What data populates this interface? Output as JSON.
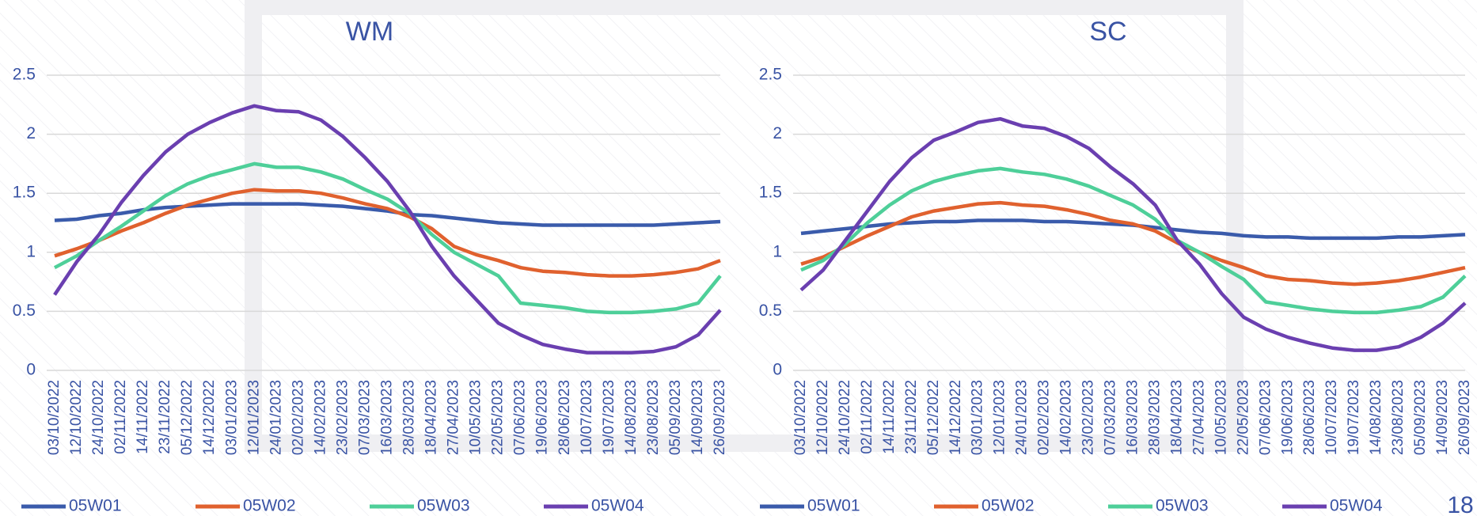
{
  "chart_data": [
    {
      "type": "line",
      "title": "WM",
      "categories": [
        "03/10/2022",
        "12/10/2022",
        "24/10/2022",
        "02/11/2022",
        "14/11/2022",
        "23/11/2022",
        "05/12/2022",
        "14/12/2022",
        "03/01/2023",
        "12/01/2023",
        "24/01/2023",
        "02/02/2023",
        "14/02/2023",
        "23/02/2023",
        "07/03/2023",
        "16/03/2023",
        "28/03/2023",
        "18/04/2023",
        "27/04/2023",
        "10/05/2023",
        "22/05/2023",
        "07/06/2023",
        "19/06/2023",
        "28/06/2023",
        "10/07/2023",
        "19/07/2023",
        "14/08/2023",
        "23/08/2023",
        "05/09/2023",
        "14/09/2023",
        "26/09/2023"
      ],
      "series": [
        {
          "name": "05W01",
          "color": "#3a5bab",
          "values": [
            1.27,
            1.28,
            1.31,
            1.33,
            1.36,
            1.38,
            1.39,
            1.4,
            1.41,
            1.41,
            1.41,
            1.41,
            1.4,
            1.39,
            1.37,
            1.35,
            1.32,
            1.31,
            1.29,
            1.27,
            1.25,
            1.24,
            1.23,
            1.23,
            1.23,
            1.23,
            1.23,
            1.23,
            1.24,
            1.25,
            1.26
          ]
        },
        {
          "name": "05W02",
          "color": "#e0612e",
          "values": [
            0.97,
            1.03,
            1.1,
            1.18,
            1.25,
            1.33,
            1.4,
            1.45,
            1.5,
            1.53,
            1.52,
            1.52,
            1.5,
            1.46,
            1.41,
            1.37,
            1.3,
            1.2,
            1.05,
            0.98,
            0.93,
            0.87,
            0.84,
            0.83,
            0.81,
            0.8,
            0.8,
            0.81,
            0.83,
            0.86,
            0.93
          ]
        },
        {
          "name": "05W03",
          "color": "#4ecf99",
          "values": [
            0.87,
            0.97,
            1.1,
            1.22,
            1.35,
            1.48,
            1.58,
            1.65,
            1.7,
            1.75,
            1.72,
            1.72,
            1.68,
            1.62,
            1.53,
            1.45,
            1.33,
            1.15,
            1.0,
            0.9,
            0.8,
            0.57,
            0.55,
            0.53,
            0.5,
            0.49,
            0.49,
            0.5,
            0.52,
            0.57,
            0.8
          ]
        },
        {
          "name": "05W04",
          "color": "#6a3fb0",
          "values": [
            0.64,
            0.92,
            1.15,
            1.42,
            1.65,
            1.85,
            2.0,
            2.1,
            2.18,
            2.24,
            2.2,
            2.19,
            2.12,
            1.98,
            1.8,
            1.6,
            1.35,
            1.05,
            0.8,
            0.6,
            0.4,
            0.3,
            0.22,
            0.18,
            0.15,
            0.15,
            0.15,
            0.16,
            0.2,
            0.3,
            0.51
          ]
        }
      ],
      "ylim": [
        0,
        2.5
      ],
      "yticks": [
        0,
        0.5,
        1,
        1.5,
        2,
        2.5
      ],
      "grid": true,
      "legend": "bottom"
    },
    {
      "type": "line",
      "title": "SC",
      "categories": [
        "03/10/2022",
        "12/10/2022",
        "24/10/2022",
        "02/11/2022",
        "14/11/2022",
        "23/11/2022",
        "05/12/2022",
        "14/12/2022",
        "03/01/2023",
        "12/01/2023",
        "24/01/2023",
        "02/02/2023",
        "14/02/2023",
        "23/02/2023",
        "07/03/2023",
        "16/03/2023",
        "28/03/2023",
        "18/04/2023",
        "27/04/2023",
        "10/05/2023",
        "22/05/2023",
        "07/06/2023",
        "19/06/2023",
        "28/06/2023",
        "10/07/2023",
        "19/07/2023",
        "14/08/2023",
        "23/08/2023",
        "05/09/2023",
        "14/09/2023",
        "26/09/2023"
      ],
      "series": [
        {
          "name": "05W01",
          "color": "#3a5bab",
          "values": [
            1.16,
            1.18,
            1.2,
            1.22,
            1.24,
            1.25,
            1.26,
            1.26,
            1.27,
            1.27,
            1.27,
            1.26,
            1.26,
            1.25,
            1.24,
            1.23,
            1.21,
            1.19,
            1.17,
            1.16,
            1.14,
            1.13,
            1.13,
            1.12,
            1.12,
            1.12,
            1.12,
            1.13,
            1.13,
            1.14,
            1.15
          ]
        },
        {
          "name": "05W02",
          "color": "#e0612e",
          "values": [
            0.9,
            0.96,
            1.05,
            1.14,
            1.22,
            1.3,
            1.35,
            1.38,
            1.41,
            1.42,
            1.4,
            1.39,
            1.36,
            1.32,
            1.27,
            1.24,
            1.18,
            1.08,
            1.0,
            0.93,
            0.87,
            0.8,
            0.77,
            0.76,
            0.74,
            0.73,
            0.74,
            0.76,
            0.79,
            0.83,
            0.87
          ]
        },
        {
          "name": "05W03",
          "color": "#4ecf99",
          "values": [
            0.85,
            0.93,
            1.07,
            1.25,
            1.4,
            1.52,
            1.6,
            1.65,
            1.69,
            1.71,
            1.68,
            1.66,
            1.62,
            1.56,
            1.48,
            1.4,
            1.28,
            1.1,
            1.0,
            0.88,
            0.77,
            0.58,
            0.55,
            0.52,
            0.5,
            0.49,
            0.49,
            0.51,
            0.54,
            0.62,
            0.8
          ]
        },
        {
          "name": "05W04",
          "color": "#6a3fb0",
          "values": [
            0.68,
            0.85,
            1.1,
            1.35,
            1.6,
            1.8,
            1.95,
            2.02,
            2.1,
            2.13,
            2.07,
            2.05,
            1.98,
            1.88,
            1.72,
            1.58,
            1.4,
            1.1,
            0.9,
            0.65,
            0.45,
            0.35,
            0.28,
            0.23,
            0.19,
            0.17,
            0.17,
            0.2,
            0.28,
            0.4,
            0.57
          ]
        }
      ],
      "ylim": [
        0,
        2.5
      ],
      "yticks": [
        0,
        0.5,
        1,
        1.5,
        2,
        2.5
      ],
      "grid": true,
      "legend": "bottom"
    }
  ],
  "page_number": "18"
}
